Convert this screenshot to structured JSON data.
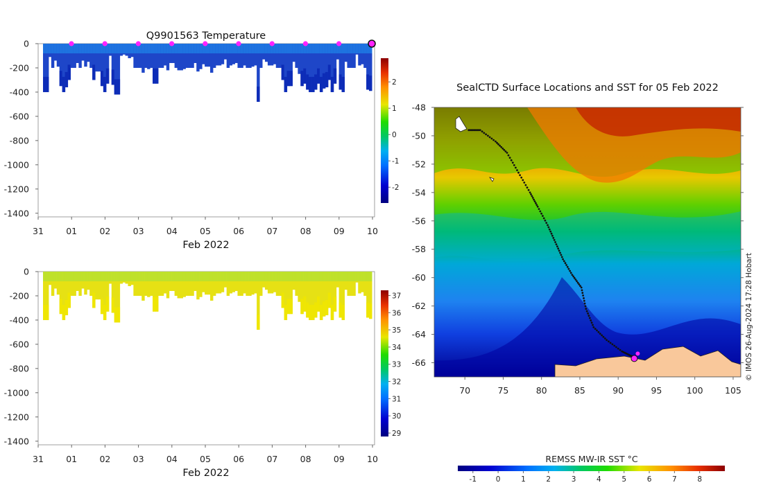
{
  "chart_data": [
    {
      "type": "heatmap",
      "title": "Q9901563  Temperature",
      "xlabel": "Feb 2022",
      "x_tick_labels": [
        "31",
        "01",
        "02",
        "03",
        "04",
        "05",
        "06",
        "07",
        "08",
        "09",
        "10"
      ],
      "y_tick_labels": [
        "0",
        "-200",
        "-400",
        "-600",
        "-800",
        "-1000",
        "-1200",
        "-1400"
      ],
      "ylim": [
        -1430,
        0
      ],
      "colorbar": {
        "range": [
          -2.6,
          2.9
        ],
        "tick_labels": [
          "2",
          "1",
          "0",
          "-1",
          "-2"
        ]
      },
      "profile_marker_count": 9
    },
    {
      "type": "heatmap",
      "title": "",
      "xlabel": "Feb 2022",
      "x_tick_labels": [
        "31",
        "01",
        "02",
        "03",
        "04",
        "05",
        "06",
        "07",
        "08",
        "09",
        "10"
      ],
      "y_tick_labels": [
        "0",
        "-200",
        "-400",
        "-600",
        "-800",
        "-1000",
        "-1200",
        "-1400"
      ],
      "ylim": [
        -1430,
        0
      ],
      "colorbar": {
        "range": [
          28.8,
          37.3
        ],
        "tick_labels": [
          "37",
          "36",
          "35",
          "34",
          "33",
          "32",
          "31",
          "30",
          "29"
        ]
      }
    },
    {
      "type": "scatter",
      "title": "SealCTD Surface Locations and SST for 05 Feb 2022",
      "x_tick_labels": [
        "70",
        "75",
        "80",
        "85",
        "90",
        "95",
        "100",
        "105"
      ],
      "y_tick_labels": [
        "-48",
        "-50",
        "-52",
        "-54",
        "-56",
        "-58",
        "-60",
        "-62",
        "-64",
        "-66"
      ],
      "xlim": [
        66,
        106
      ],
      "ylim": [
        -67,
        -48
      ],
      "track": [
        [
          70.5,
          -49.6
        ],
        [
          72.0,
          -49.6
        ],
        [
          74.0,
          -50.4
        ],
        [
          75.5,
          -51.2
        ],
        [
          77.0,
          -52.6
        ],
        [
          78.5,
          -54.0
        ],
        [
          79.5,
          -55.0
        ],
        [
          80.8,
          -56.3
        ],
        [
          81.8,
          -57.5
        ],
        [
          82.8,
          -58.7
        ],
        [
          84.0,
          -59.8
        ],
        [
          85.2,
          -60.7
        ],
        [
          85.8,
          -62.2
        ],
        [
          86.8,
          -63.5
        ],
        [
          88.5,
          -64.4
        ],
        [
          90.5,
          -65.2
        ],
        [
          92.0,
          -65.6
        ]
      ],
      "latest_position": [
        92.1,
        -65.7
      ],
      "colorbar": {
        "label": "REMSS MW-IR SST °C",
        "range": [
          -1.6,
          9
        ],
        "tick_labels": [
          "-1",
          "0",
          "1",
          "2",
          "3",
          "4",
          "5",
          "6",
          "7",
          "8"
        ]
      },
      "credit": "© IMOS 26-Aug-2024 17:28 Hobart"
    }
  ],
  "colors": {
    "background": "#ffffff",
    "land": "#f9c89b",
    "marker": "#ff22ff",
    "temperature_main": "#1e46c8",
    "salinity_main": "#e6e114"
  }
}
